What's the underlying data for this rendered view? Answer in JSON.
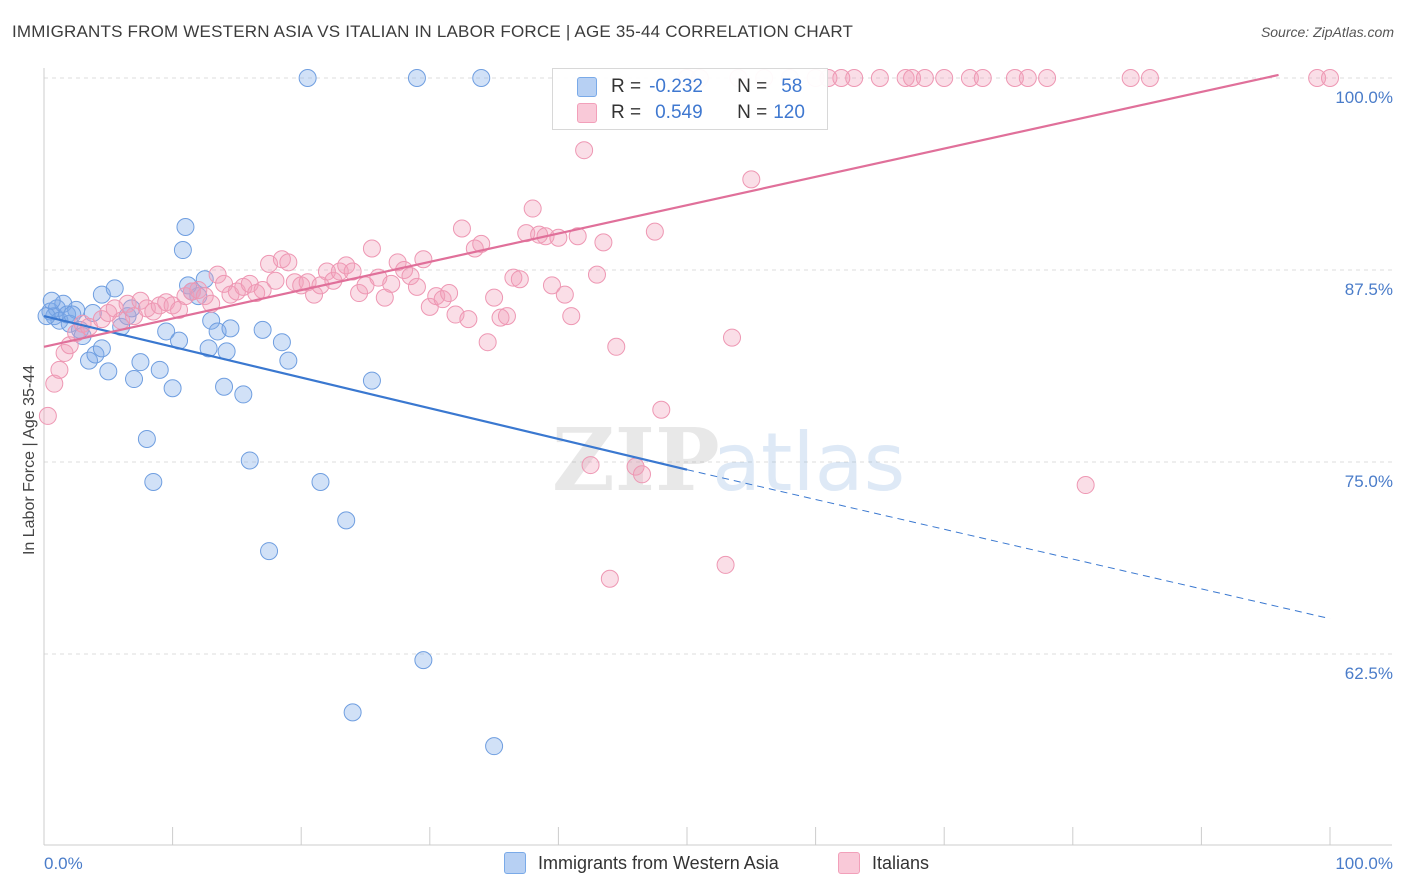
{
  "header": {
    "title": "IMMIGRANTS FROM WESTERN ASIA VS ITALIAN IN LABOR FORCE | AGE 35-44 CORRELATION CHART",
    "source": "Source: ZipAtlas.com"
  },
  "watermark": {
    "zip": "ZIP",
    "atlas": "atlas"
  },
  "legend": {
    "rows": [
      {
        "r_label": "R =",
        "r_value": "-0.232",
        "n_label": "N =",
        "n_value": "58"
      },
      {
        "r_label": "R =",
        "r_value": "0.549",
        "n_label": "N =",
        "n_value": "120"
      }
    ]
  },
  "colors": {
    "blue": "#7aaae8",
    "blue_line": "#3a78d0",
    "pink": "#f2a0ba",
    "pink_line": "#e0709a",
    "tick_text": "#4a7cc9"
  },
  "chart_data": {
    "type": "scatter",
    "xlabel": "",
    "ylabel": "In Labor Force | Age 35-44",
    "xlim": [
      0,
      100
    ],
    "ylim": [
      51.5,
      102
    ],
    "x_tick_labels": [
      {
        "value": 0,
        "label": "0.0%"
      },
      {
        "value": 100,
        "label": "100.0%"
      }
    ],
    "y_tick_labels": [
      {
        "value": 100,
        "label": "100.0%"
      },
      {
        "value": 87.5,
        "label": "87.5%"
      },
      {
        "value": 75,
        "label": "75.0%"
      },
      {
        "value": 62.5,
        "label": "62.5%"
      }
    ],
    "grid": true,
    "legend_position": "top-center",
    "series": [
      {
        "name": "Immigrants from Western Asia",
        "color": "#7aaae8",
        "points": [
          [
            0.5,
            84.8
          ],
          [
            0.8,
            84.5
          ],
          [
            1.0,
            85.0
          ],
          [
            1.2,
            84.2
          ],
          [
            1.5,
            85.3
          ],
          [
            1.8,
            84.6
          ],
          [
            2.0,
            84.0
          ],
          [
            2.5,
            84.9
          ],
          [
            2.8,
            83.6
          ],
          [
            3.0,
            83.2
          ],
          [
            3.5,
            81.6
          ],
          [
            4.0,
            82.0
          ],
          [
            4.5,
            82.4
          ],
          [
            5.0,
            80.9
          ],
          [
            4.5,
            85.9
          ],
          [
            5.5,
            86.3
          ],
          [
            6.0,
            83.8
          ],
          [
            6.5,
            84.5
          ],
          [
            7.0,
            80.4
          ],
          [
            7.5,
            81.5
          ],
          [
            8.0,
            76.5
          ],
          [
            8.5,
            73.7
          ],
          [
            9.0,
            81.0
          ],
          [
            9.5,
            83.5
          ],
          [
            10.0,
            79.8
          ],
          [
            10.5,
            82.9
          ],
          [
            10.8,
            88.8
          ],
          [
            11.0,
            90.3
          ],
          [
            11.5,
            86.1
          ],
          [
            12.0,
            85.8
          ],
          [
            12.5,
            86.9
          ],
          [
            12.8,
            82.4
          ],
          [
            13.0,
            84.2
          ],
          [
            13.5,
            83.5
          ],
          [
            14.0,
            79.9
          ],
          [
            14.2,
            82.2
          ],
          [
            14.5,
            83.7
          ],
          [
            15.5,
            79.4
          ],
          [
            16.0,
            75.1
          ],
          [
            17.0,
            83.6
          ],
          [
            17.5,
            69.2
          ],
          [
            18.5,
            82.8
          ],
          [
            19.0,
            81.6
          ],
          [
            20.5,
            100.0
          ],
          [
            21.5,
            73.7
          ],
          [
            23.5,
            71.2
          ],
          [
            24.0,
            58.7
          ],
          [
            25.5,
            80.3
          ],
          [
            29.5,
            62.1
          ],
          [
            29.0,
            100.0
          ],
          [
            35.0,
            56.5
          ],
          [
            34.0,
            100.0
          ],
          [
            0.2,
            84.5
          ],
          [
            0.6,
            85.5
          ],
          [
            2.2,
            84.6
          ],
          [
            3.8,
            84.7
          ],
          [
            6.8,
            85.0
          ],
          [
            11.2,
            86.5
          ]
        ],
        "trend": {
          "x0": 0,
          "y0": 84.5,
          "x1": 50,
          "y1": 74.5,
          "dash_to_x": 100,
          "dash_to_y": 64.8
        }
      },
      {
        "name": "Italians",
        "color": "#f2a0ba",
        "points": [
          [
            0.3,
            78.0
          ],
          [
            0.8,
            80.1
          ],
          [
            1.2,
            81.0
          ],
          [
            1.6,
            82.1
          ],
          [
            2.0,
            82.6
          ],
          [
            2.5,
            83.4
          ],
          [
            3.0,
            84.0
          ],
          [
            3.5,
            83.8
          ],
          [
            4.5,
            84.3
          ],
          [
            5.0,
            84.7
          ],
          [
            5.5,
            85.0
          ],
          [
            6.0,
            84.2
          ],
          [
            6.5,
            85.3
          ],
          [
            7.0,
            84.5
          ],
          [
            7.5,
            85.5
          ],
          [
            8.0,
            85.0
          ],
          [
            8.5,
            84.8
          ],
          [
            9.0,
            85.2
          ],
          [
            9.5,
            85.4
          ],
          [
            10.0,
            85.2
          ],
          [
            10.5,
            84.9
          ],
          [
            11.0,
            85.8
          ],
          [
            11.5,
            86.1
          ],
          [
            12.0,
            86.2
          ],
          [
            12.5,
            85.8
          ],
          [
            13.0,
            85.3
          ],
          [
            13.5,
            87.2
          ],
          [
            14.0,
            86.6
          ],
          [
            14.5,
            85.9
          ],
          [
            15.0,
            86.1
          ],
          [
            15.5,
            86.4
          ],
          [
            16.0,
            86.6
          ],
          [
            16.5,
            86.0
          ],
          [
            17.0,
            86.2
          ],
          [
            17.5,
            87.9
          ],
          [
            18.0,
            86.8
          ],
          [
            18.5,
            88.2
          ],
          [
            19.0,
            88.0
          ],
          [
            19.5,
            86.7
          ],
          [
            20.0,
            86.5
          ],
          [
            20.5,
            86.7
          ],
          [
            21.0,
            85.9
          ],
          [
            21.5,
            86.5
          ],
          [
            22.0,
            87.4
          ],
          [
            22.5,
            86.8
          ],
          [
            23.0,
            87.4
          ],
          [
            23.5,
            87.8
          ],
          [
            24.0,
            87.4
          ],
          [
            24.5,
            86.0
          ],
          [
            25.0,
            86.5
          ],
          [
            25.5,
            88.9
          ],
          [
            26.0,
            87.0
          ],
          [
            26.5,
            85.7
          ],
          [
            27.0,
            86.6
          ],
          [
            27.5,
            88.0
          ],
          [
            28.0,
            87.5
          ],
          [
            28.5,
            87.1
          ],
          [
            29.0,
            86.4
          ],
          [
            29.5,
            88.2
          ],
          [
            30.0,
            85.1
          ],
          [
            30.5,
            85.8
          ],
          [
            31.0,
            85.6
          ],
          [
            31.5,
            86.0
          ],
          [
            32.0,
            84.6
          ],
          [
            32.5,
            90.2
          ],
          [
            33.0,
            84.3
          ],
          [
            33.5,
            88.9
          ],
          [
            34.0,
            89.2
          ],
          [
            34.5,
            82.8
          ],
          [
            35.0,
            85.7
          ],
          [
            35.5,
            84.4
          ],
          [
            36.0,
            84.5
          ],
          [
            36.5,
            87.0
          ],
          [
            37.0,
            86.9
          ],
          [
            37.5,
            89.9
          ],
          [
            38.0,
            91.5
          ],
          [
            38.5,
            89.8
          ],
          [
            39.0,
            89.7
          ],
          [
            39.5,
            86.5
          ],
          [
            40.0,
            89.6
          ],
          [
            40.5,
            85.9
          ],
          [
            41.0,
            84.5
          ],
          [
            41.5,
            89.7
          ],
          [
            42.0,
            95.3
          ],
          [
            42.5,
            74.8
          ],
          [
            43.0,
            87.2
          ],
          [
            43.5,
            89.3
          ],
          [
            44.0,
            67.4
          ],
          [
            44.5,
            82.5
          ],
          [
            46.0,
            74.7
          ],
          [
            46.5,
            74.2
          ],
          [
            47.5,
            90.0
          ],
          [
            48.0,
            78.4
          ],
          [
            50.0,
            100.0
          ],
          [
            51.0,
            100.0
          ],
          [
            53.0,
            68.3
          ],
          [
            53.5,
            83.1
          ],
          [
            54.0,
            100.0
          ],
          [
            55.0,
            93.4
          ],
          [
            56.0,
            100.0
          ],
          [
            58.0,
            100.0
          ],
          [
            61.0,
            100.0
          ],
          [
            63.0,
            100.0
          ],
          [
            65.0,
            100.0
          ],
          [
            67.0,
            100.0
          ],
          [
            67.5,
            100.0
          ],
          [
            68.5,
            100.0
          ],
          [
            70.0,
            100.0
          ],
          [
            72.0,
            100.0
          ],
          [
            73.0,
            100.0
          ],
          [
            75.5,
            100.0
          ],
          [
            76.5,
            100.0
          ],
          [
            78.0,
            100.0
          ],
          [
            81.0,
            73.5
          ],
          [
            84.5,
            100.0
          ],
          [
            86.0,
            100.0
          ],
          [
            60.0,
            100.0
          ],
          [
            62.0,
            100.0
          ],
          [
            99.0,
            100.0
          ],
          [
            100.0,
            100.0
          ]
        ],
        "trend": {
          "x0": 0,
          "y0": 82.5,
          "x1": 96,
          "y1": 100.2
        }
      }
    ]
  },
  "bottom_legend": [
    {
      "label": "Immigrants from Western Asia"
    },
    {
      "label": "Italians"
    }
  ]
}
